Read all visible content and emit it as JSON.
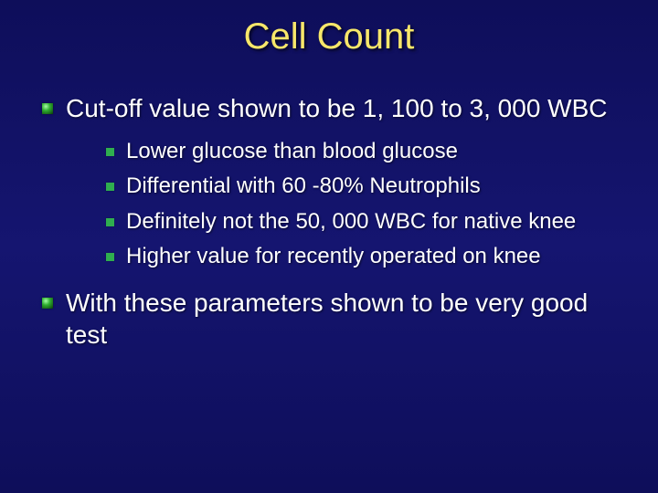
{
  "slide": {
    "title": "Cell Count",
    "background_gradient": [
      "#0e0e5a",
      "#151570",
      "#0e0e5a"
    ],
    "title_color": "#f7e76a",
    "text_color": "#ffffff",
    "title_fontsize": 40,
    "body_fontsize": 28,
    "sub_fontsize": 24,
    "bullet1_color": "#2fae2f",
    "bullet2_color": "#2fae4f",
    "bullets": [
      {
        "text": "Cut-off value shown to be 1, 100 to 3, 000 WBC",
        "sub": [
          "Lower glucose than blood glucose",
          "Differential with 60 -80% Neutrophils",
          "Definitely not the 50, 000 WBC for native knee",
          "Higher value for recently operated on knee"
        ]
      },
      {
        "text": "With these parameters shown to be very good test",
        "sub": []
      }
    ]
  }
}
